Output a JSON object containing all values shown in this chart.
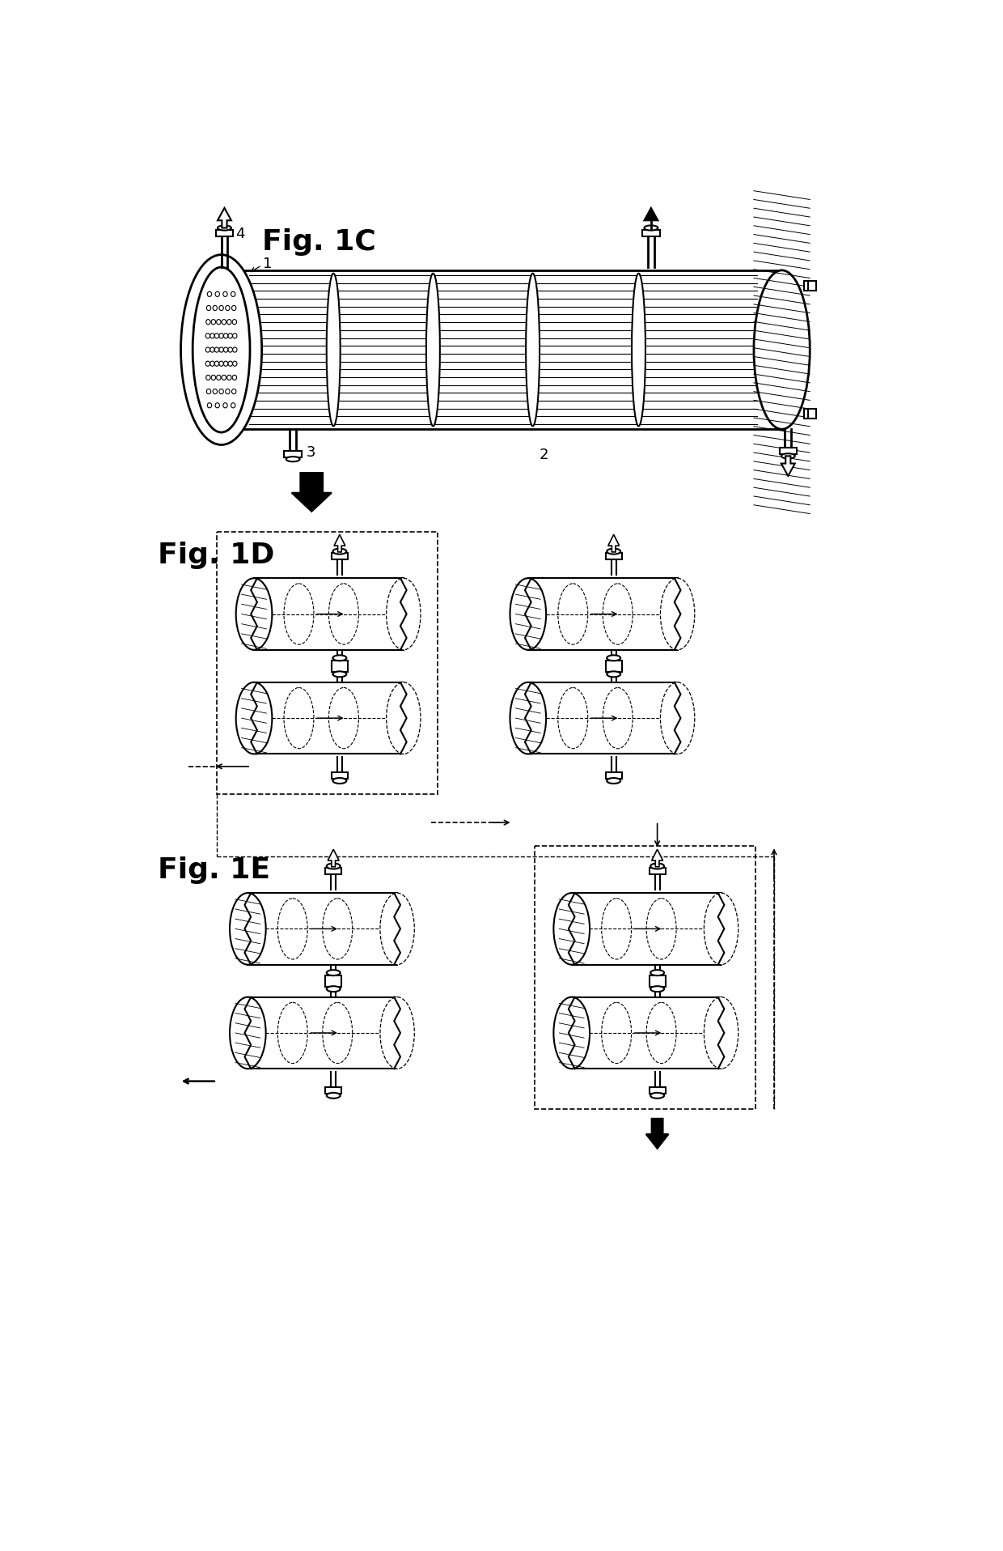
{
  "background_color": "#ffffff",
  "fig1c_label": "Fig. 1C",
  "fig1d_label": "Fig. 1D",
  "fig1e_label": "Fig. 1E",
  "label_1": "1",
  "label_2": "2",
  "label_3": "3",
  "label_4": "4",
  "line_color": "#000000"
}
